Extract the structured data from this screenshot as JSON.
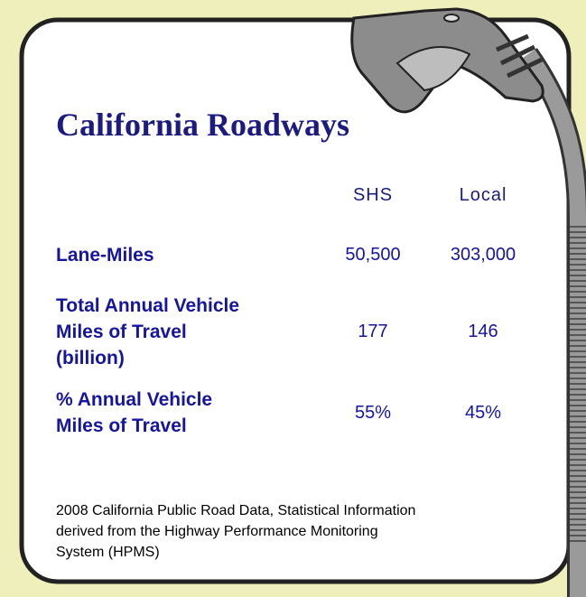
{
  "title": "California Roadways",
  "table": {
    "columns": [
      "SHS",
      "Local"
    ],
    "rows": [
      {
        "label": [
          "Lane-Miles"
        ],
        "values": [
          "50,500",
          "303,000"
        ]
      },
      {
        "label": [
          "Total Annual Vehicle",
          "Miles of Travel",
          "(billion)"
        ],
        "values": [
          "177",
          "146"
        ]
      },
      {
        "label": [
          "% Annual Vehicle",
          "Miles of Travel"
        ],
        "values": [
          "55%",
          "45%"
        ]
      }
    ]
  },
  "source": [
    "2008 California Public Road Data, Statistical Information",
    "derived from the Highway Performance Monitoring",
    "System (HPMS)"
  ]
}
